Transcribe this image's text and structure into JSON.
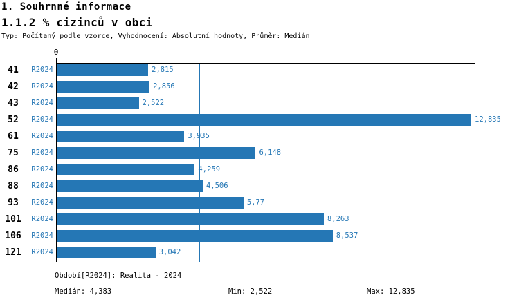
{
  "header": {
    "title": "1. Souhrnné informace",
    "subtitle": "1.1.2 % cizinců v obci",
    "meta": "Typ: Počítaný podle vzorce, Vyhodnocení: Absolutní hodnoty, Průměr: Medián"
  },
  "chart_data": {
    "type": "bar",
    "orientation": "horizontal",
    "title": "1.1.2 % cizinců v obci",
    "axis_zero_label": "0",
    "series_label": "R2024",
    "categories": [
      "41",
      "42",
      "43",
      "52",
      "61",
      "75",
      "86",
      "88",
      "93",
      "101",
      "106",
      "121"
    ],
    "values": [
      2.815,
      2.856,
      2.522,
      12.835,
      3.935,
      6.148,
      4.259,
      4.506,
      5.77,
      8.263,
      8.537,
      3.042
    ],
    "value_labels": [
      "2,815",
      "2,856",
      "2,522",
      "12,835",
      "3,935",
      "6,148",
      "4,259",
      "4,506",
      "5,77",
      "8,263",
      "8,537",
      "3,042"
    ],
    "xlim": [
      0,
      12.835
    ],
    "median": 4.383,
    "min": 2.522,
    "max": 12.835,
    "grid": false,
    "legend": "none",
    "bar_color": "#2577b5",
    "median_line_color": "#2577b5",
    "label_color": "#2577b5",
    "axis_color": "#000000"
  },
  "footer": {
    "period": "Období[R2024]: Realita - 2024",
    "median": "Medián: 4,383",
    "min": "Min: 2,522",
    "max": "Max: 12,835"
  }
}
